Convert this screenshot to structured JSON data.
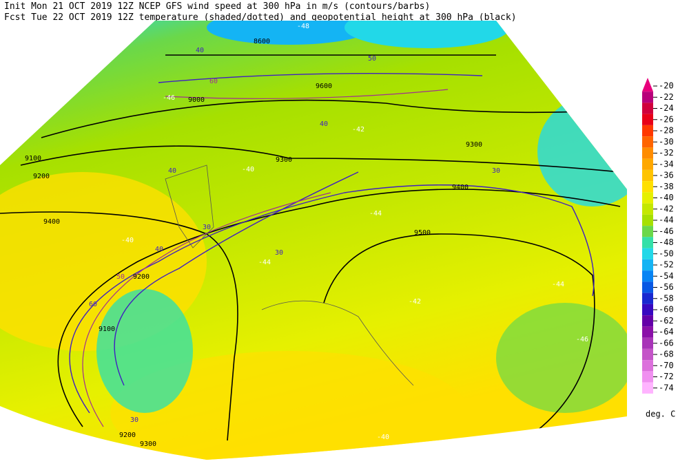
{
  "header": {
    "line1": "Init  Mon 21 OCT 2019 12Z  NCEP GFS wind speed at 300 hPa in m/s (contours/barbs)",
    "line2": "Fcst Tue 22 OCT 2019 12Z  temperature (shaded/dotted) and geopotential height at 300 hPa (black)"
  },
  "colorbar": {
    "labels": [
      -20,
      -22,
      -24,
      -26,
      -28,
      -30,
      -32,
      -34,
      -36,
      -38,
      -40,
      -42,
      -44,
      -46,
      -48,
      -50,
      -52,
      -54,
      -56,
      -58,
      -60,
      -62,
      -64,
      -66,
      -68,
      -70,
      -72,
      -74
    ],
    "colors": [
      "#e8007c",
      "#b8007a",
      "#d0003c",
      "#e80018",
      "#ff3800",
      "#ff6400",
      "#ff8c00",
      "#ffa800",
      "#ffc400",
      "#ffe000",
      "#e6f000",
      "#c4e800",
      "#a6e000",
      "#6ad84a",
      "#34e0a8",
      "#22d8e8",
      "#14b4f4",
      "#0884f4",
      "#0858e4",
      "#1828d0",
      "#3808c0",
      "#6400a8",
      "#8a10a8",
      "#a834b8",
      "#c454c8",
      "#dc70dc",
      "#f090f0",
      "#ffb4ff"
    ],
    "unit": "deg. C"
  },
  "map_labels": [
    "8600",
    "9000",
    "9100",
    "9200",
    "9200",
    "9300",
    "9300",
    "9400",
    "9400",
    "9500",
    "9100",
    "9200",
    "9300",
    "9600",
    "40",
    "40",
    "50",
    "60",
    "30",
    "30",
    "30",
    "40",
    "50",
    "60",
    "30",
    "40",
    "-40",
    "-44",
    "-40",
    "-44",
    "-42",
    "-46",
    "-44",
    "-42",
    "-40",
    "-48",
    "-46"
  ]
}
